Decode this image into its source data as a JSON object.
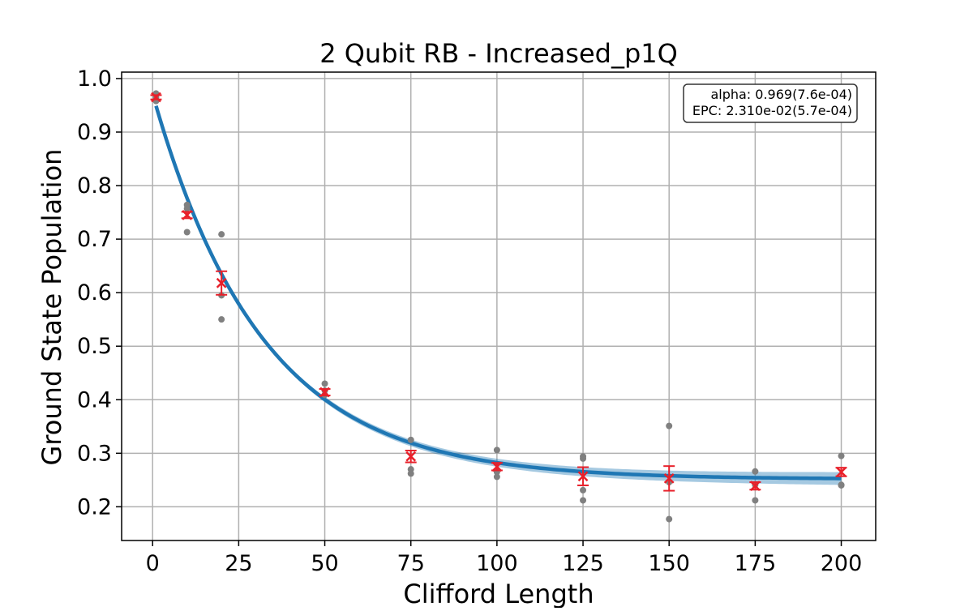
{
  "chart_data": {
    "type": "scatter",
    "title": "2 Qubit RB - Increased_p1Q",
    "xlabel": "Clifford Length",
    "ylabel": "Ground State Population",
    "xlim": [
      -9,
      210
    ],
    "ylim": [
      0.137,
      1.012
    ],
    "xticks": [
      "0",
      "25",
      "50",
      "75",
      "100",
      "125",
      "150",
      "175",
      "200"
    ],
    "xtick_values": [
      0,
      25,
      50,
      75,
      100,
      125,
      150,
      175,
      200
    ],
    "yticks": [
      "0.2",
      "0.3",
      "0.4",
      "0.5",
      "0.6",
      "0.7",
      "0.8",
      "0.9",
      "1.0"
    ],
    "ytick_values": [
      0.2,
      0.3,
      0.4,
      0.5,
      0.6,
      0.7,
      0.8,
      0.9,
      1.0
    ],
    "grid": true,
    "annotation": {
      "line1": "alpha: 0.969(7.6e-04)",
      "line2": "EPC: 2.310e-02(5.7e-04)",
      "placement": "top-right"
    },
    "fit": {
      "model": "A*alpha^x + B",
      "A": 0.7197,
      "alpha": 0.969,
      "B": 0.2515,
      "band_halfwidth_start": 0.003,
      "band_halfwidth_end": 0.012,
      "color": "#1f77b4"
    },
    "samples": {
      "color": "#808080",
      "points": [
        {
          "x": 1,
          "y": 0.972
        },
        {
          "x": 1,
          "y": 0.965
        },
        {
          "x": 1,
          "y": 0.958
        },
        {
          "x": 10,
          "y": 0.764
        },
        {
          "x": 10,
          "y": 0.757
        },
        {
          "x": 10,
          "y": 0.713
        },
        {
          "x": 20,
          "y": 0.709
        },
        {
          "x": 20,
          "y": 0.595
        },
        {
          "x": 20,
          "y": 0.55
        },
        {
          "x": 50,
          "y": 0.43
        },
        {
          "x": 50,
          "y": 0.417
        },
        {
          "x": 50,
          "y": 0.409
        },
        {
          "x": 75,
          "y": 0.325
        },
        {
          "x": 75,
          "y": 0.27
        },
        {
          "x": 75,
          "y": 0.262
        },
        {
          "x": 100,
          "y": 0.306
        },
        {
          "x": 100,
          "y": 0.265
        },
        {
          "x": 100,
          "y": 0.256
        },
        {
          "x": 125,
          "y": 0.294
        },
        {
          "x": 125,
          "y": 0.29
        },
        {
          "x": 125,
          "y": 0.231
        },
        {
          "x": 125,
          "y": 0.212
        },
        {
          "x": 150,
          "y": 0.351
        },
        {
          "x": 150,
          "y": 0.246
        },
        {
          "x": 150,
          "y": 0.177
        },
        {
          "x": 175,
          "y": 0.266
        },
        {
          "x": 175,
          "y": 0.241
        },
        {
          "x": 175,
          "y": 0.212
        },
        {
          "x": 200,
          "y": 0.295
        },
        {
          "x": 200,
          "y": 0.241
        },
        {
          "x": 200,
          "y": 0.24
        }
      ]
    },
    "means": {
      "color": "#e8202a",
      "points": [
        {
          "x": 1,
          "y": 0.965,
          "err": 0.004
        },
        {
          "x": 10,
          "y": 0.745,
          "err": 0.006
        },
        {
          "x": 20,
          "y": 0.618,
          "err": 0.022
        },
        {
          "x": 50,
          "y": 0.414,
          "err": 0.006
        },
        {
          "x": 75,
          "y": 0.294,
          "err": 0.011
        },
        {
          "x": 100,
          "y": 0.275,
          "err": 0.007
        },
        {
          "x": 125,
          "y": 0.257,
          "err": 0.017
        },
        {
          "x": 150,
          "y": 0.253,
          "err": 0.023
        },
        {
          "x": 175,
          "y": 0.239,
          "err": 0.007
        },
        {
          "x": 200,
          "y": 0.265,
          "err": 0.008
        }
      ]
    }
  }
}
